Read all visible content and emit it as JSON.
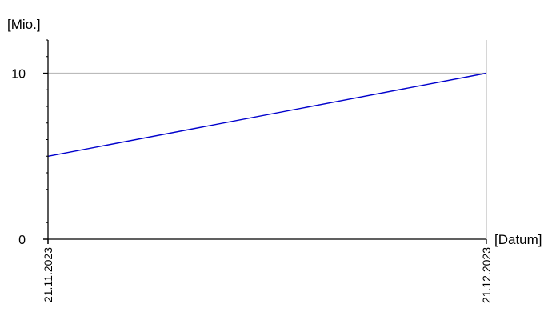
{
  "chart_data": {
    "type": "line",
    "ylabel": "[Mio.]",
    "xlabel": "[Datum]",
    "x": [
      "21.11.2023",
      "21.12.2023"
    ],
    "series": [
      {
        "values": [
          5,
          10
        ],
        "color": "#0000cc"
      }
    ],
    "xlim": [
      "21.11.2023",
      "21.12.2023"
    ],
    "ylim": [
      0,
      12
    ],
    "yticks": [
      {
        "value": 0,
        "label": "0"
      },
      {
        "value": 10,
        "label": "10"
      }
    ],
    "y_minor_tick_step": 1,
    "grid": {
      "y_at": [
        10
      ],
      "x_at_end": true,
      "color": "#bbbbbb"
    }
  }
}
